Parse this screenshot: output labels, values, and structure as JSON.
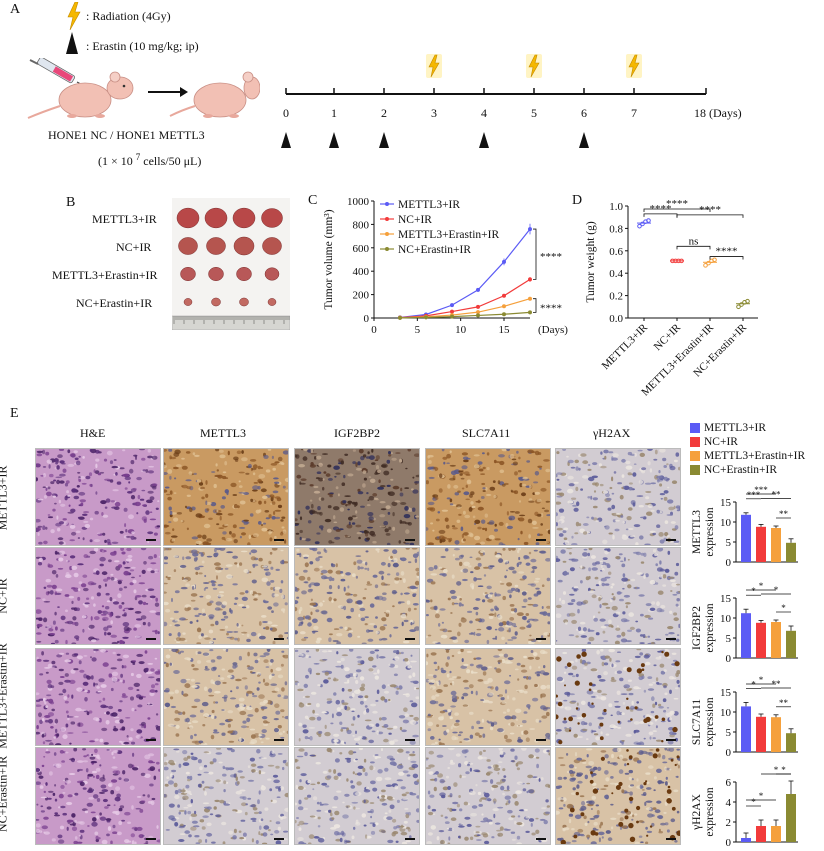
{
  "panelA": {
    "letter": "A",
    "legend_radiation": ": Radiation (4Gy)",
    "legend_erastin": ": Erastin (10 mg/kg; ip)",
    "cells_label": "HONE1 NC / HONE1 METTL3",
    "dose_label_prefix": "(1 × 10",
    "dose_label_exp": "7",
    "dose_label_suffix": "cells/50 μL)",
    "timeline_ticks": [
      "0",
      "1",
      "2",
      "3",
      "4",
      "5",
      "6",
      "7",
      "18 (Days)"
    ],
    "radiation_days": [
      "3",
      "5",
      "7"
    ],
    "erastin_days": [
      "0",
      "1",
      "2",
      "4",
      "6"
    ],
    "colors": {
      "lightning": "#f5b800",
      "mouse": "#f2c0b4",
      "syringe_liquid": "#e8487a"
    }
  },
  "panelB": {
    "letter": "B",
    "groups": [
      "METTL3+IR",
      "NC+IR",
      "METTL3+Erastin+IR",
      "NC+Erastin+IR"
    ]
  },
  "panelC": {
    "letter": "C",
    "significance": [
      "****",
      "****"
    ]
  },
  "panelD": {
    "letter": "D",
    "significance": [
      "****",
      "****",
      "****",
      "ns",
      "****"
    ]
  },
  "panelE": {
    "letter": "E",
    "columns": [
      "H&E",
      "METTL3",
      "IGF2BP2",
      "SLC7A11",
      "γH2AX"
    ],
    "rows": [
      "METTL3+IR",
      "NC+IR",
      "METTL3+Erastin+IR",
      "NC+Erastin+IR"
    ],
    "legend": [
      "METTL3+IR",
      "NC+IR",
      "METTL3+Erastin+IR",
      "NC+Erastin+IR"
    ],
    "colors": [
      "#5b5bf5",
      "#f23b3b",
      "#f5a03c",
      "#8a8a32"
    ]
  },
  "chart_data": [
    {
      "type": "line",
      "title": "",
      "xlabel": "(Days)",
      "ylabel": "Tumor volume (mm³)",
      "x": [
        3,
        6,
        9,
        12,
        15,
        18
      ],
      "xlim": [
        0,
        18
      ],
      "ylim": [
        0,
        1000
      ],
      "xticks": [
        "0",
        "5",
        "10",
        "15"
      ],
      "yticks": [
        "0",
        "200",
        "400",
        "600",
        "800",
        "1000"
      ],
      "series": [
        {
          "name": "METTL3+IR",
          "color": "#5b5bf5",
          "values": [
            5,
            30,
            110,
            240,
            480,
            760
          ]
        },
        {
          "name": "NC+IR",
          "color": "#f23b3b",
          "values": [
            3,
            18,
            55,
            95,
            190,
            330
          ]
        },
        {
          "name": "METTL3+Erastin+IR",
          "color": "#f5a03c",
          "values": [
            2,
            10,
            25,
            50,
            100,
            165
          ]
        },
        {
          "name": "NC+Erastin+IR",
          "color": "#8a8a32",
          "values": [
            1,
            5,
            12,
            22,
            32,
            48
          ]
        }
      ],
      "legend": "top-left"
    },
    {
      "type": "scatter",
      "title": "",
      "ylabel": "Tumor weight (g)",
      "categories": [
        "METTL3+IR",
        "NC+IR",
        "METTL3+Erastin+IR",
        "NC+Erastin+IR"
      ],
      "ylim": [
        0,
        1.0
      ],
      "yticks": [
        "0.0",
        "0.2",
        "0.4",
        "0.6",
        "0.8",
        "1.0"
      ],
      "series": [
        {
          "name": "METTL3+IR",
          "color": "#5b5bf5",
          "values": [
            0.82,
            0.84,
            0.86,
            0.87
          ]
        },
        {
          "name": "NC+IR",
          "color": "#f23b3b",
          "values": [
            0.51,
            0.51,
            0.51,
            0.51
          ]
        },
        {
          "name": "METTL3+Erastin+IR",
          "color": "#f5a03c",
          "values": [
            0.47,
            0.49,
            0.51,
            0.52
          ]
        },
        {
          "name": "NC+Erastin+IR",
          "color": "#8a8a32",
          "values": [
            0.1,
            0.12,
            0.14,
            0.15
          ]
        }
      ]
    },
    {
      "type": "bar",
      "ylabel": "METTL3 expression",
      "categories": [
        "METTL3+IR",
        "NC+IR",
        "METTL3+Erastin+IR",
        "NC+Erastin+IR"
      ],
      "values": [
        11.8,
        8.8,
        8.5,
        4.8
      ],
      "errors": [
        0.5,
        0.6,
        0.5,
        1.0
      ],
      "ylim": [
        0,
        15
      ],
      "yticks": [
        "0",
        "5",
        "10",
        "15"
      ],
      "significance": [
        "***",
        "***",
        "**",
        "**"
      ]
    },
    {
      "type": "bar",
      "ylabel": "IGF2BP2 expression",
      "categories": [
        "METTL3+IR",
        "NC+IR",
        "METTL3+Erastin+IR",
        "NC+Erastin+IR"
      ],
      "values": [
        11.2,
        8.8,
        9.0,
        6.8
      ],
      "errors": [
        1.0,
        0.6,
        0.5,
        1.2
      ],
      "ylim": [
        0,
        15
      ],
      "yticks": [
        "0",
        "5",
        "10",
        "15"
      ],
      "significance": [
        "*",
        "*",
        "*",
        "*"
      ]
    },
    {
      "type": "bar",
      "ylabel": "SLC7A11 expression",
      "categories": [
        "METTL3+IR",
        "NC+IR",
        "METTL3+Erastin+IR",
        "NC+Erastin+IR"
      ],
      "values": [
        11.4,
        8.8,
        8.7,
        4.7
      ],
      "errors": [
        1.0,
        0.7,
        0.6,
        1.1
      ],
      "ylim": [
        0,
        15
      ],
      "yticks": [
        "0",
        "5",
        "10",
        "15"
      ],
      "significance": [
        "*",
        "*",
        "**",
        "**"
      ]
    },
    {
      "type": "bar",
      "ylabel": "γH2AX expression",
      "categories": [
        "METTL3+IR",
        "NC+IR",
        "METTL3+Erastin+IR",
        "NC+Erastin+IR"
      ],
      "values": [
        0.4,
        1.6,
        1.6,
        4.8
      ],
      "errors": [
        0.5,
        0.6,
        0.6,
        1.3
      ],
      "ylim": [
        0,
        6
      ],
      "yticks": [
        "0",
        "2",
        "4",
        "6"
      ],
      "significance": [
        "*",
        "*",
        "*",
        "*"
      ]
    }
  ]
}
